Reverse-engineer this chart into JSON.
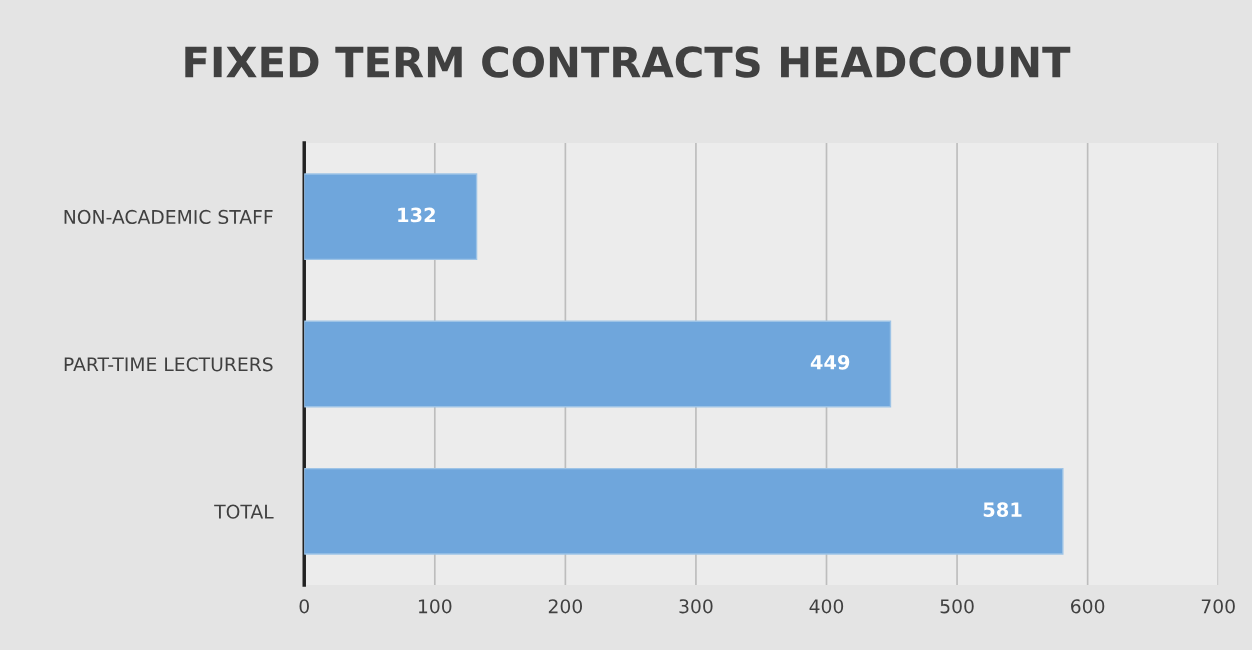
{
  "chart_data": {
    "type": "bar",
    "orientation": "horizontal",
    "title": "FIXED TERM CONTRACTS HEADCOUNT",
    "categories": [
      "NON-ACADEMIC STAFF",
      "PART-TIME LECTURERS",
      "TOTAL"
    ],
    "values": [
      132,
      449,
      581
    ],
    "color": "#6fa6dc",
    "xlim": [
      0,
      700
    ],
    "xticks": [
      0,
      100,
      200,
      300,
      400,
      500,
      600,
      700
    ],
    "grid": "x",
    "data_labels": true
  }
}
